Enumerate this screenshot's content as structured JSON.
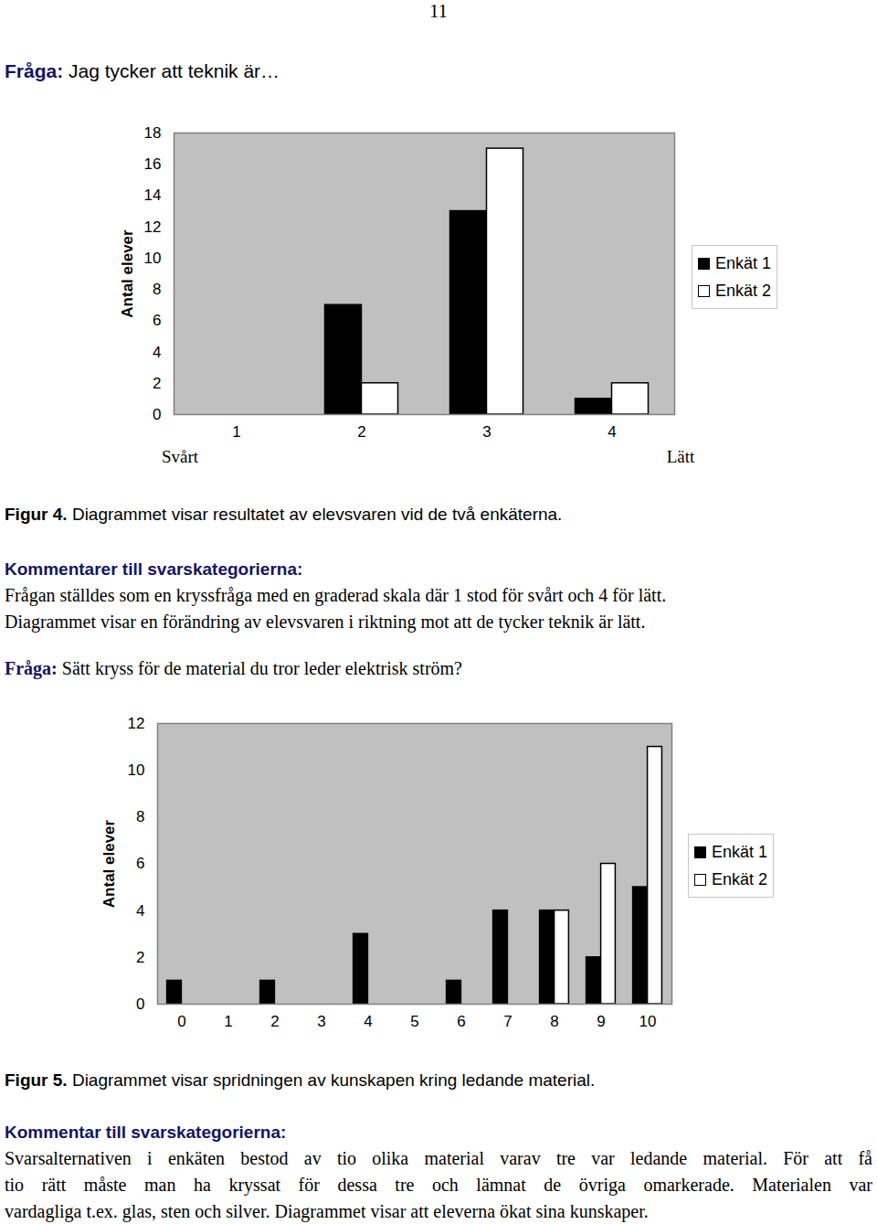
{
  "page_number": "11",
  "question1": {
    "label": "Fråga:",
    "text": "Jag tycker att teknik är…"
  },
  "chart_data": [
    {
      "type": "bar",
      "ylabel": "Antal elever",
      "categories": [
        1,
        2,
        3,
        4
      ],
      "series": [
        {
          "name": "Enkät 1",
          "color": "#000000",
          "values": [
            0,
            7,
            13,
            1
          ]
        },
        {
          "name": "Enkät 2",
          "color": "#ffffff",
          "values": [
            0,
            2,
            17,
            2
          ]
        }
      ],
      "ylim": [
        0,
        18
      ],
      "yticks": [
        0,
        2,
        4,
        6,
        8,
        10,
        12,
        14,
        16,
        18
      ],
      "grid": false,
      "legend": "right",
      "annotations": [
        "Svårt",
        "Lätt"
      ]
    },
    {
      "type": "bar",
      "ylabel": "Antal elever",
      "categories": [
        0,
        1,
        2,
        3,
        4,
        5,
        6,
        7,
        8,
        9,
        10
      ],
      "series": [
        {
          "name": "Enkät 1",
          "color": "#000000",
          "values": [
            1,
            0,
            1,
            0,
            3,
            0,
            1,
            4,
            4,
            2,
            5
          ]
        },
        {
          "name": "Enkät 2",
          "color": "#ffffff",
          "values": [
            0,
            0,
            0,
            0,
            0,
            0,
            0,
            0,
            4,
            6,
            11
          ]
        }
      ],
      "ylim": [
        0,
        12
      ],
      "yticks": [
        0,
        2,
        4,
        6,
        8,
        10,
        12
      ],
      "grid": false,
      "legend": "right"
    }
  ],
  "figure1_caption": {
    "label": "Figur 4.",
    "text": "Diagrammet visar resultatet av elevsvaren vid de två enkäterna."
  },
  "comment1": {
    "heading": "Kommentarer till svarskategorierna:",
    "lines": [
      "Frågan ställdes som en kryssfråga med en graderad skala där 1 stod för svårt och 4 för lätt.",
      "Diagrammet visar en förändring av elevsvaren i riktning mot att de tycker teknik är lätt."
    ]
  },
  "question2": {
    "label": "Fråga:",
    "text": "Sätt kryss för de material du tror leder elektrisk ström?"
  },
  "figure2_caption": {
    "label": "Figur 5.",
    "text": "Diagrammet visar spridningen av kunskapen kring ledande material."
  },
  "comment2": {
    "heading": "Kommentar till svarskategorierna:",
    "lines": [
      "Svarsalternativen i enkäten bestod av tio olika material varav tre var ledande material. För att få",
      "tio rätt måste man ha kryssat för dessa tre och lämnat de övriga omarkerade. Materialen var",
      "vardagliga t.ex. glas, sten och silver. Diagrammet visar att eleverna ökat sina kunskaper."
    ]
  }
}
